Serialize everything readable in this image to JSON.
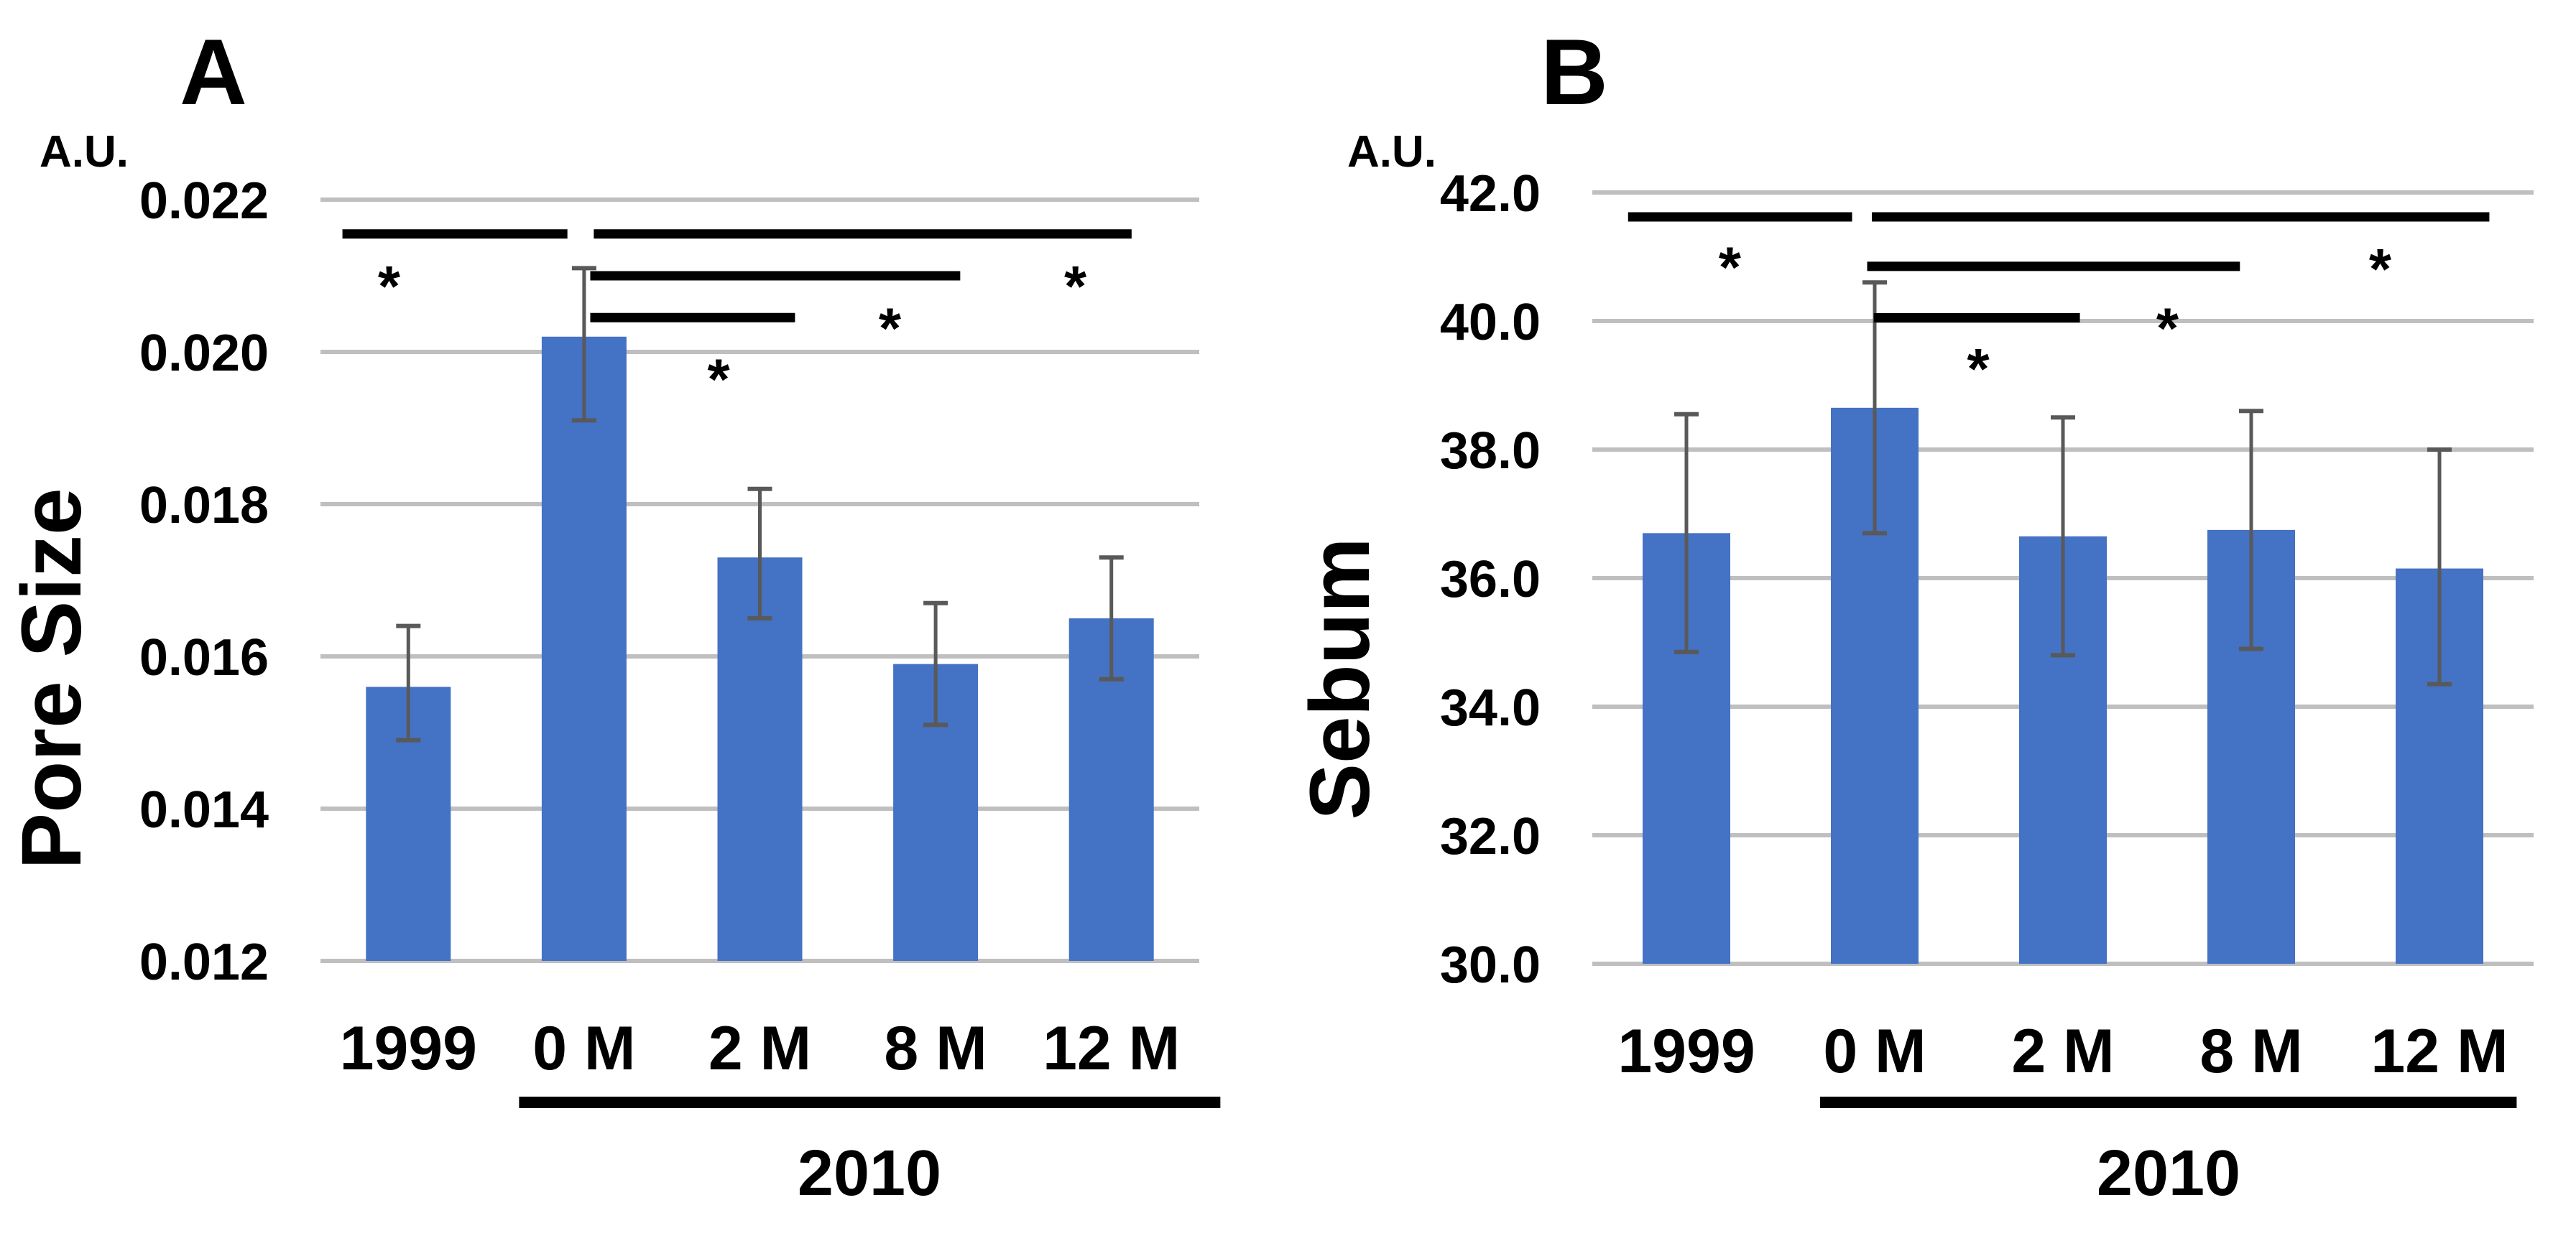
{
  "figure": {
    "background_color": "#ffffff",
    "bar_color": "#4472C4",
    "error_bar_color": "#595959",
    "gridline_color": "#BFBFBF",
    "annotation_color": "#000000"
  },
  "chart_data": [
    {
      "panel": "A",
      "type": "bar",
      "title": "A",
      "axis_unit": "A.U.",
      "ylabel": "Pore Size",
      "categories": [
        "1999",
        "0 M",
        "2 M",
        "8 M",
        "12 M"
      ],
      "values": [
        0.0156,
        0.0202,
        0.0173,
        0.0159,
        0.0165
      ],
      "errors_low": [
        0.0149,
        0.0191,
        0.0165,
        0.0151,
        0.0157
      ],
      "errors_high": [
        0.0164,
        0.0211,
        0.0182,
        0.0167,
        0.0173
      ],
      "ylim": [
        0.012,
        0.022
      ],
      "ytick_labels": [
        "0.022",
        "0.020",
        "0.018",
        "0.016",
        "0.014",
        "0.012"
      ],
      "grid": true,
      "legend": "none",
      "group": {
        "label": "2010",
        "spans": [
          "0 M",
          "12 M"
        ],
        "x1f": 0.226,
        "x2f": 1.024
      },
      "significance_brackets": [
        {
          "pair": [
            "1999",
            "0 M"
          ],
          "y": 0.02155,
          "x1f": 0.025,
          "x2f": 0.281,
          "star": "*",
          "star_xf": 0.078,
          "star_y": 0.021
        },
        {
          "pair": [
            "0 M",
            "12 M"
          ],
          "y": 0.02155,
          "x1f": 0.311,
          "x2f": 0.923,
          "star": "*",
          "star_xf": 0.859,
          "star_y": 0.021
        },
        {
          "pair": [
            "0 M",
            "8 M"
          ],
          "y": 0.021,
          "x1f": 0.307,
          "x2f": 0.728,
          "star": "*",
          "star_xf": 0.648,
          "star_y": 0.02045
        },
        {
          "pair": [
            "0 M",
            "2 M"
          ],
          "y": 0.02045,
          "x1f": 0.307,
          "x2f": 0.54,
          "star": "*",
          "star_xf": 0.453,
          "star_y": 0.01978
        }
      ]
    },
    {
      "panel": "B",
      "type": "bar",
      "title": "B",
      "axis_unit": "A.U.",
      "ylabel": "Sebum",
      "categories": [
        "1999",
        "0 M",
        "2 M",
        "8 M",
        "12 M"
      ],
      "values": [
        36.7,
        38.65,
        36.65,
        36.75,
        36.15
      ],
      "errors_low": [
        34.85,
        36.7,
        34.8,
        34.9,
        34.35
      ],
      "errors_high": [
        38.55,
        40.6,
        38.5,
        38.6,
        38.0
      ],
      "ylim": [
        30.0,
        42.0
      ],
      "ytick_labels": [
        "42.0",
        "40.0",
        "38.0",
        "36.0",
        "34.0",
        "32.0",
        "30.0"
      ],
      "grid": true,
      "legend": "none",
      "group": {
        "label": "2010",
        "spans": [
          "0 M",
          "12 M"
        ],
        "x1f": 0.242,
        "x2f": 0.982
      },
      "significance_brackets": [
        {
          "pair": [
            "1999",
            "0 M"
          ],
          "y": 41.62,
          "x1f": 0.038,
          "x2f": 0.276,
          "star": "*",
          "star_xf": 0.146,
          "star_y": 41.0
        },
        {
          "pair": [
            "0 M",
            "12 M"
          ],
          "y": 41.62,
          "x1f": 0.297,
          "x2f": 0.953,
          "star": "*",
          "star_xf": 0.837,
          "star_y": 40.97
        },
        {
          "pair": [
            "0 M",
            "8 M"
          ],
          "y": 40.85,
          "x1f": 0.292,
          "x2f": 0.688,
          "star": "*",
          "star_xf": 0.611,
          "star_y": 40.05
        },
        {
          "pair": [
            "0 M",
            "2 M"
          ],
          "y": 40.05,
          "x1f": 0.299,
          "x2f": 0.518,
          "star": "*",
          "star_xf": 0.41,
          "star_y": 39.42
        }
      ]
    }
  ]
}
